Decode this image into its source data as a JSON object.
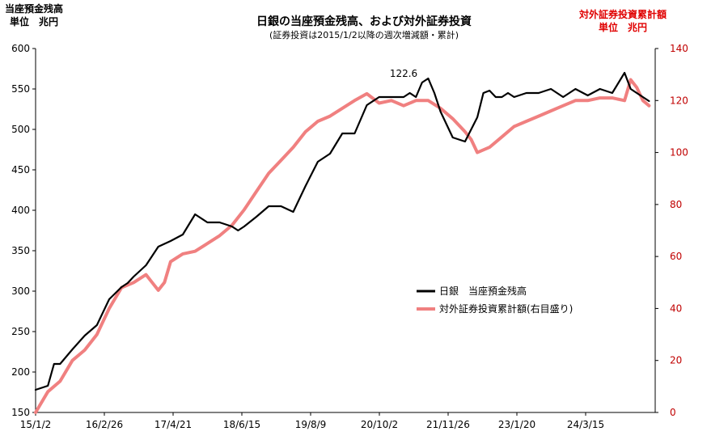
{
  "chart_data": {
    "type": "line",
    "title": "日銀の当座預金残高、および対外証券投資",
    "subtitle": "(証券投資は2015/1/2以降の週次増減額・累計)",
    "left_axis_label": [
      "当座預金残高",
      "単位　兆円"
    ],
    "right_axis_label": [
      "対外証券投資累計額",
      "単位　兆円"
    ],
    "x_ticks": [
      "15/1/2",
      "16/2/26",
      "17/4/21",
      "18/6/15",
      "19/8/9",
      "20/10/2",
      "21/11/26",
      "23/1/20",
      "24/3/15"
    ],
    "x_range": [
      0,
      505
    ],
    "y_left": {
      "min": 150,
      "max": 600,
      "ticks": [
        150,
        200,
        250,
        300,
        350,
        400,
        450,
        500,
        550,
        600
      ]
    },
    "y_right": {
      "min": 0,
      "max": 140,
      "ticks": [
        0,
        20,
        40,
        60,
        80,
        100,
        120,
        140
      ]
    },
    "grid": false,
    "legend_position": "lower-right",
    "annotations": [
      {
        "text": "122.6",
        "x": 300,
        "axis": "left",
        "y": 569
      }
    ],
    "series": [
      {
        "name": "日銀　当座預金残高",
        "color": "#000000",
        "axis": "left",
        "x": [
          0,
          10,
          15,
          20,
          30,
          40,
          50,
          60,
          70,
          75,
          80,
          90,
          100,
          110,
          120,
          130,
          140,
          150,
          160,
          165,
          170,
          180,
          190,
          200,
          210,
          220,
          230,
          240,
          250,
          260,
          270,
          280,
          290,
          300,
          305,
          310,
          315,
          320,
          325,
          330,
          340,
          350,
          360,
          365,
          370,
          375,
          380,
          385,
          390,
          400,
          410,
          420,
          430,
          440,
          450,
          460,
          470,
          480,
          485,
          490,
          495,
          500
        ],
        "y": [
          178,
          183,
          210,
          210,
          228,
          245,
          258,
          290,
          305,
          310,
          318,
          332,
          355,
          362,
          370,
          395,
          385,
          385,
          380,
          375,
          380,
          392,
          405,
          405,
          398,
          430,
          460,
          470,
          495,
          495,
          530,
          540,
          540,
          540,
          545,
          540,
          558,
          563,
          545,
          522,
          490,
          485,
          515,
          545,
          548,
          540,
          540,
          545,
          540,
          545,
          545,
          550,
          540,
          550,
          542,
          550,
          545,
          570,
          550,
          545,
          540,
          535
        ]
      },
      {
        "name": "対外証券投資累計額(右目盛り)",
        "color": "#f08080",
        "axis": "right",
        "x": [
          0,
          10,
          20,
          30,
          40,
          50,
          60,
          70,
          80,
          90,
          95,
          100,
          105,
          110,
          120,
          130,
          140,
          150,
          160,
          170,
          180,
          190,
          200,
          210,
          220,
          230,
          240,
          250,
          260,
          270,
          280,
          290,
          300,
          310,
          320,
          330,
          340,
          350,
          355,
          360,
          370,
          380,
          390,
          400,
          410,
          420,
          430,
          440,
          450,
          460,
          470,
          480,
          485,
          490,
          495,
          500
        ],
        "y": [
          0,
          8,
          12,
          20,
          24,
          30,
          40,
          48,
          50,
          53,
          50,
          47,
          50,
          58,
          61,
          62,
          65,
          68,
          72,
          78,
          85,
          92,
          97,
          102,
          108,
          112,
          114,
          117,
          120,
          122.6,
          119,
          120,
          118,
          120,
          120,
          117,
          113,
          108,
          105,
          100,
          102,
          106,
          110,
          112,
          114,
          116,
          118,
          120,
          120,
          121,
          121,
          120,
          128,
          125,
          120,
          118
        ]
      }
    ]
  }
}
